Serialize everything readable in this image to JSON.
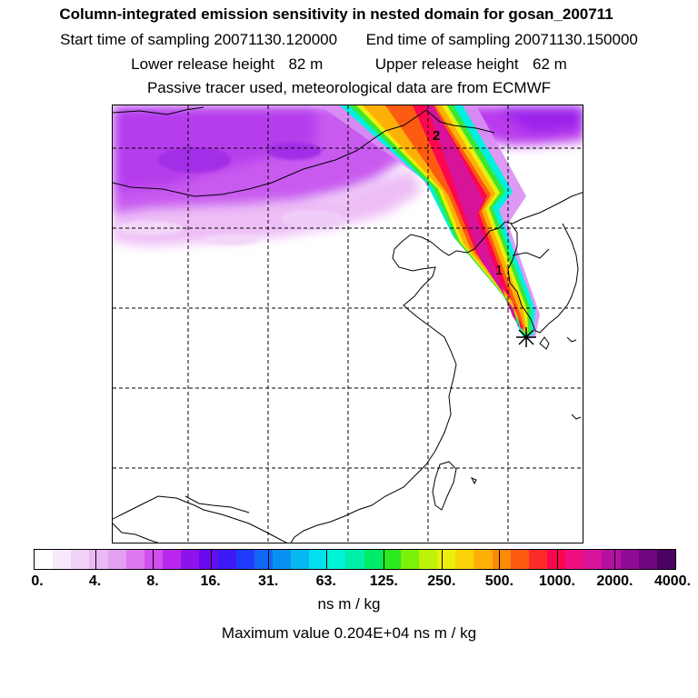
{
  "header": {
    "title": "Column-integrated emission sensitivity in nested domain for gosan_200711",
    "start_label": "Start time of sampling",
    "start_value": "20071130.120000",
    "end_label": "End time of sampling",
    "end_value": "20071130.150000",
    "lower_label": "Lower release height",
    "lower_value": "82 m",
    "upper_label": "Upper release height",
    "upper_value": "62 m",
    "note": "Passive tracer used, meteorological data are from ECMWF"
  },
  "map": {
    "labels": [
      "2",
      "1"
    ],
    "marker": "release site asterisk"
  },
  "colorbar": {
    "colors": [
      "#ffffff",
      "#f7e9fb",
      "#f1d2f7",
      "#eab9f4",
      "#e39ff2",
      "#dc79ef",
      "#d04fee",
      "#b927ee",
      "#8e12ec",
      "#6b0af0",
      "#3d1af5",
      "#1e3cf8",
      "#1266f6",
      "#0891f2",
      "#06b7f2",
      "#04dff0",
      "#00f5d8",
      "#00efa8",
      "#00ea6c",
      "#2aea1f",
      "#7cf10c",
      "#bff20a",
      "#ecee0c",
      "#fbd508",
      "#fdb007",
      "#fd8908",
      "#fd5a12",
      "#fc2a28",
      "#fd0650",
      "#f10d82",
      "#d7139a",
      "#b511a0",
      "#8f0d96",
      "#6d067f",
      "#4b0263"
    ],
    "tick_labels": [
      "0.",
      "4.",
      "8.",
      "16.",
      "31.",
      "63.",
      "125.",
      "250.",
      "500.",
      "1000.",
      "2000.",
      "4000."
    ]
  },
  "units": "ns m / kg",
  "max_value_text": "Maximum value  0.204E+04 ns m / kg"
}
